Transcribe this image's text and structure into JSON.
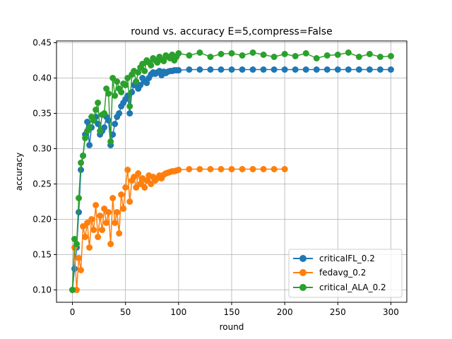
{
  "chart_data": {
    "type": "line",
    "title": "round vs. accuracy E=5,compress=False",
    "xlabel": "round",
    "ylabel": "accuracy",
    "xlim": [
      -15,
      315
    ],
    "ylim": [
      0.0825,
      0.4525
    ],
    "xticks": [
      0,
      50,
      100,
      150,
      200,
      250,
      300
    ],
    "xtick_labels": [
      "0",
      "50",
      "100",
      "150",
      "200",
      "250",
      "300"
    ],
    "yticks": [
      0.1,
      0.15,
      0.2,
      0.25,
      0.3,
      0.35,
      0.4,
      0.45
    ],
    "ytick_labels": [
      "0.10",
      "0.15",
      "0.20",
      "0.25",
      "0.30",
      "0.35",
      "0.40",
      "0.45"
    ],
    "grid": true,
    "legend_position": "lower-right",
    "series": [
      {
        "name": "criticalFL_0.2",
        "color": "#1f77b4",
        "x": [
          0,
          2,
          4,
          6,
          8,
          10,
          12,
          14,
          16,
          18,
          20,
          22,
          24,
          26,
          28,
          30,
          32,
          34,
          36,
          38,
          40,
          42,
          44,
          46,
          48,
          50,
          52,
          54,
          56,
          58,
          60,
          62,
          64,
          66,
          68,
          70,
          72,
          74,
          76,
          78,
          80,
          82,
          84,
          86,
          88,
          90,
          92,
          94,
          96,
          98,
          100,
          110,
          120,
          130,
          140,
          150,
          160,
          170,
          180,
          190,
          200,
          210,
          220,
          230,
          240,
          250,
          260,
          270,
          280,
          290,
          300
        ],
        "y": [
          0.1,
          0.13,
          0.16,
          0.21,
          0.27,
          0.29,
          0.32,
          0.338,
          0.305,
          0.33,
          0.34,
          0.345,
          0.335,
          0.32,
          0.325,
          0.33,
          0.345,
          0.34,
          0.305,
          0.32,
          0.335,
          0.345,
          0.35,
          0.36,
          0.365,
          0.37,
          0.375,
          0.35,
          0.38,
          0.39,
          0.395,
          0.385,
          0.39,
          0.4,
          0.395,
          0.393,
          0.4,
          0.405,
          0.408,
          0.406,
          0.408,
          0.41,
          0.404,
          0.409,
          0.407,
          0.409,
          0.41,
          0.41,
          0.411,
          0.411,
          0.411,
          0.412,
          0.412,
          0.412,
          0.412,
          0.412,
          0.412,
          0.412,
          0.412,
          0.412,
          0.412,
          0.412,
          0.412,
          0.412,
          0.412,
          0.412,
          0.412,
          0.412,
          0.412,
          0.412,
          0.412
        ]
      },
      {
        "name": "fedavg_0.2",
        "color": "#ff7f0e",
        "x": [
          0,
          2,
          4,
          6,
          8,
          10,
          12,
          14,
          16,
          18,
          20,
          22,
          24,
          26,
          28,
          30,
          32,
          34,
          36,
          38,
          40,
          42,
          44,
          46,
          48,
          50,
          52,
          54,
          56,
          58,
          60,
          62,
          64,
          66,
          68,
          70,
          72,
          74,
          76,
          78,
          80,
          82,
          84,
          86,
          88,
          90,
          92,
          94,
          96,
          98,
          100,
          110,
          120,
          130,
          140,
          150,
          160,
          170,
          180,
          190,
          200
        ],
        "y": [
          0.1,
          0.16,
          0.1,
          0.145,
          0.128,
          0.19,
          0.175,
          0.195,
          0.16,
          0.2,
          0.185,
          0.22,
          0.175,
          0.205,
          0.185,
          0.215,
          0.195,
          0.21,
          0.165,
          0.23,
          0.195,
          0.21,
          0.18,
          0.235,
          0.215,
          0.245,
          0.27,
          0.225,
          0.255,
          0.26,
          0.245,
          0.265,
          0.25,
          0.258,
          0.245,
          0.255,
          0.262,
          0.25,
          0.26,
          0.255,
          0.258,
          0.262,
          0.258,
          0.263,
          0.265,
          0.266,
          0.267,
          0.268,
          0.268,
          0.269,
          0.27,
          0.271,
          0.271,
          0.271,
          0.271,
          0.271,
          0.271,
          0.271,
          0.271,
          0.271,
          0.271
        ]
      },
      {
        "name": "critical_ALA_0.2",
        "color": "#2ca02c",
        "x": [
          0,
          2,
          4,
          6,
          8,
          10,
          12,
          14,
          16,
          18,
          20,
          22,
          24,
          26,
          28,
          30,
          32,
          34,
          36,
          38,
          40,
          42,
          44,
          46,
          48,
          50,
          52,
          54,
          56,
          58,
          60,
          62,
          64,
          66,
          68,
          70,
          72,
          74,
          76,
          78,
          80,
          82,
          84,
          86,
          88,
          90,
          92,
          94,
          96,
          98,
          100,
          110,
          120,
          130,
          140,
          150,
          160,
          170,
          180,
          190,
          200,
          210,
          220,
          230,
          240,
          250,
          260,
          270,
          280,
          290,
          300
        ],
        "y": [
          0.1,
          0.172,
          0.165,
          0.23,
          0.28,
          0.29,
          0.315,
          0.325,
          0.33,
          0.345,
          0.34,
          0.355,
          0.365,
          0.325,
          0.348,
          0.35,
          0.385,
          0.378,
          0.31,
          0.4,
          0.375,
          0.395,
          0.385,
          0.38,
          0.392,
          0.39,
          0.4,
          0.36,
          0.405,
          0.41,
          0.395,
          0.408,
          0.415,
          0.42,
          0.41,
          0.425,
          0.422,
          0.418,
          0.428,
          0.425,
          0.422,
          0.43,
          0.426,
          0.424,
          0.432,
          0.43,
          0.428,
          0.433,
          0.425,
          0.43,
          0.435,
          0.432,
          0.436,
          0.43,
          0.434,
          0.435,
          0.432,
          0.436,
          0.433,
          0.43,
          0.434,
          0.431,
          0.435,
          0.428,
          0.432,
          0.433,
          0.436,
          0.43,
          0.434,
          0.43,
          0.431
        ]
      }
    ]
  }
}
